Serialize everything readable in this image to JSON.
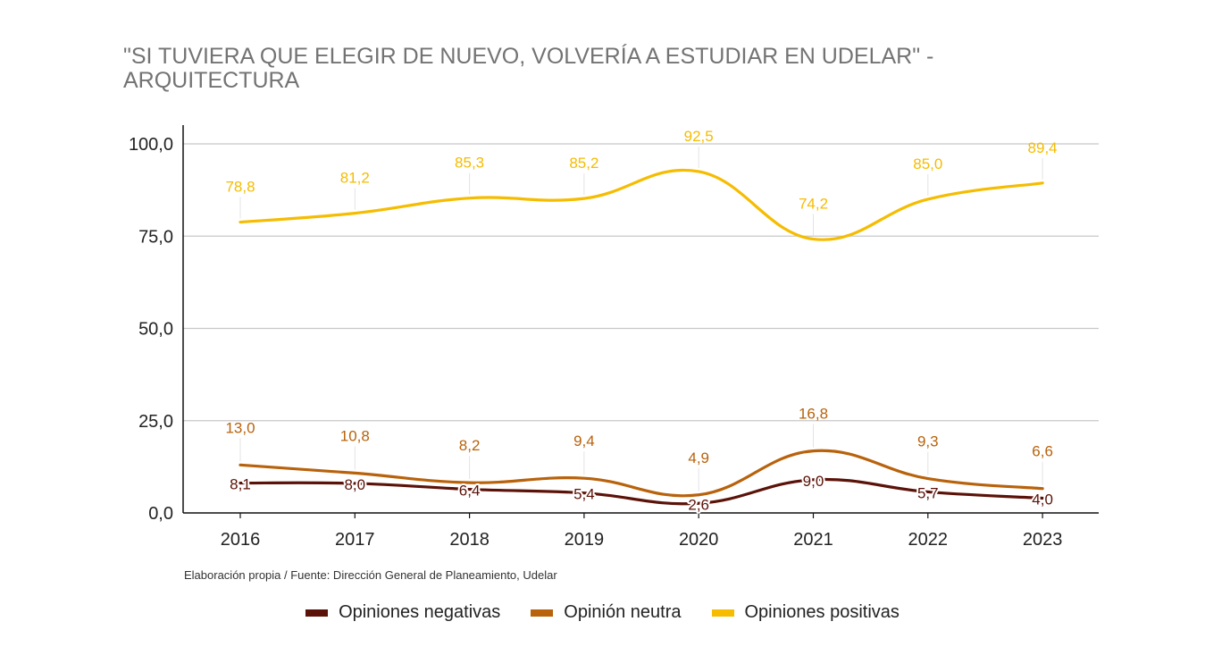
{
  "chart_data": {
    "type": "line",
    "title": "\"SI TUVIERA QUE ELEGIR DE NUEVO, VOLVERÍA A ESTUDIAR EN UDELAR\" - ARQUITECTURA",
    "categories": [
      "2016",
      "2017",
      "2018",
      "2019",
      "2020",
      "2021",
      "2022",
      "2023"
    ],
    "series": [
      {
        "name": "Opiniones negativas",
        "color": "#5b1208",
        "values": [
          8.1,
          8.0,
          6.4,
          5.4,
          2.6,
          9.0,
          5.7,
          4.0
        ],
        "labels": [
          "8,1",
          "8,0",
          "6,4",
          "5,4",
          "2,6",
          "9,0",
          "5,7",
          "4,0"
        ]
      },
      {
        "name": "Opinión neutra",
        "color": "#b8620c",
        "values": [
          13.0,
          10.8,
          8.2,
          9.4,
          4.9,
          16.8,
          9.3,
          6.6
        ],
        "labels": [
          "13,0",
          "10,8",
          "8,2",
          "9,4",
          "4,9",
          "16,8",
          "9,3",
          "6,6"
        ]
      },
      {
        "name": "Opiniones positivas",
        "color": "#f5bc00",
        "values": [
          78.8,
          81.2,
          85.3,
          85.2,
          92.5,
          74.2,
          85.0,
          89.4
        ],
        "labels": [
          "78,8",
          "81,2",
          "85,3",
          "85,2",
          "92,5",
          "74,2",
          "85,0",
          "89,4"
        ]
      }
    ],
    "y_ticks": [
      0,
      25,
      50,
      75,
      100
    ],
    "y_tick_labels": [
      "0,0",
      "25,0",
      "50,0",
      "75,0",
      "100,0"
    ],
    "ylim": [
      0,
      100
    ],
    "grid": true,
    "legend_position": "bottom"
  },
  "source_note": "Elaboración propia / Fuente: Dirección General de Planeamiento, Udelar"
}
